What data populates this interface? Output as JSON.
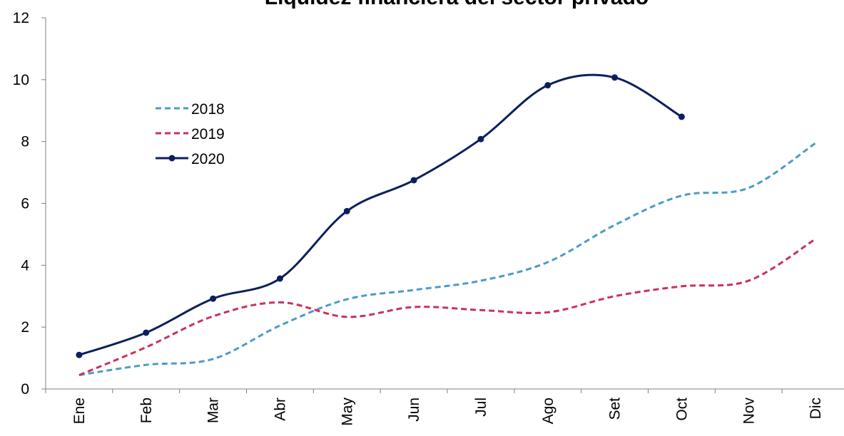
{
  "chart_data": {
    "type": "line",
    "title": "Liquidez financiera del sector privado",
    "categories": [
      "Ene",
      "Feb",
      "Mar",
      "Abr",
      "May",
      "Jun",
      "Jul",
      "Ago",
      "Set",
      "Oct",
      "Nov",
      "Dic"
    ],
    "series": [
      {
        "name": "2018",
        "color": "#4a9cc6",
        "line_style": "dashed",
        "marker": false,
        "values": [
          0.45,
          0.78,
          0.97,
          2.05,
          2.9,
          3.2,
          3.5,
          4.1,
          5.3,
          6.25,
          6.5,
          7.95
        ]
      },
      {
        "name": "2019",
        "color": "#c8325a",
        "line_style": "dashed",
        "marker": false,
        "values": [
          0.45,
          1.35,
          2.35,
          2.8,
          2.33,
          2.65,
          2.55,
          2.48,
          3.0,
          3.32,
          3.5,
          4.85
        ]
      },
      {
        "name": "2020",
        "color": "#0c1f5c",
        "line_style": "solid",
        "marker": true,
        "values": [
          1.1,
          1.82,
          2.92,
          3.57,
          5.75,
          6.75,
          8.08,
          9.82,
          10.07,
          8.8,
          null,
          null
        ]
      }
    ],
    "ylim": [
      0,
      12
    ],
    "yticks": [
      0,
      2,
      4,
      6,
      8,
      10,
      12
    ],
    "grid": false,
    "smooth": true,
    "legend": "upper left"
  }
}
